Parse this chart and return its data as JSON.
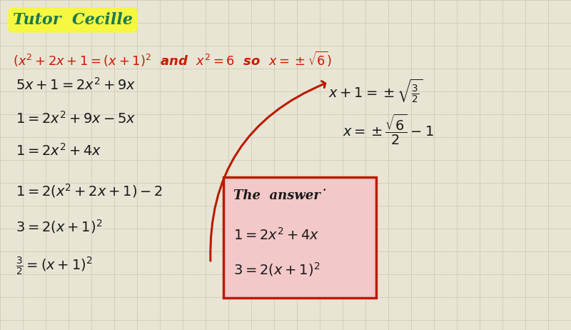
{
  "bg_color": "#e8e5d5",
  "grid_color": "#d0cbb8",
  "title_text": "Tutor  Cecille",
  "title_bg": "#f5f740",
  "title_color": "#1a7a50",
  "hint_color": "#cc1a00",
  "main_color": "#1a1a1a",
  "box_color": "#bb1a00",
  "box_fill": "#f2c8c8",
  "figsize": [
    8.0,
    4.62
  ],
  "dpi": 100
}
